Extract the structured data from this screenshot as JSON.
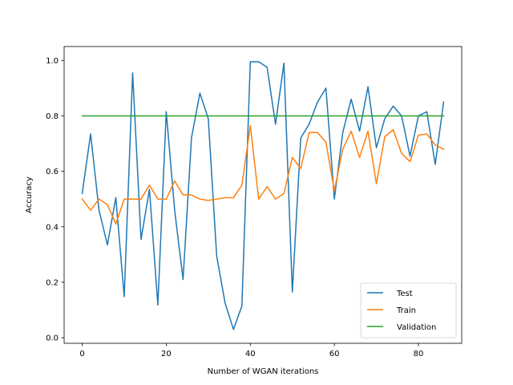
{
  "chart_data": {
    "type": "line",
    "title": "",
    "xlabel": "Number of WGAN iterations",
    "ylabel": "Accuracy",
    "xlim": [
      -4.3,
      90.3
    ],
    "ylim": [
      -0.02,
      1.05
    ],
    "xticks": [
      0,
      20,
      40,
      60,
      80
    ],
    "xtick_labels": [
      "0",
      "20",
      "40",
      "60",
      "80"
    ],
    "yticks": [
      0.0,
      0.2,
      0.4,
      0.6,
      0.8,
      1.0
    ],
    "ytick_labels": [
      "0.0",
      "0.2",
      "0.4",
      "0.6",
      "0.8",
      "1.0"
    ],
    "grid": false,
    "legend_position": "lower-right",
    "x": [
      0,
      2,
      4,
      6,
      8,
      10,
      12,
      14,
      16,
      18,
      20,
      22,
      24,
      26,
      28,
      30,
      32,
      34,
      36,
      38,
      40,
      42,
      44,
      46,
      48,
      50,
      52,
      54,
      56,
      58,
      60,
      62,
      64,
      66,
      68,
      70,
      72,
      74,
      76,
      78,
      80,
      82,
      84,
      86
    ],
    "series": [
      {
        "name": "Test",
        "color": "#1f77b4",
        "values": [
          0.52,
          0.735,
          0.46,
          0.335,
          0.505,
          0.148,
          0.955,
          0.355,
          0.535,
          0.118,
          0.815,
          0.46,
          0.21,
          0.72,
          0.882,
          0.79,
          0.295,
          0.125,
          0.03,
          0.115,
          0.995,
          0.995,
          0.975,
          0.77,
          0.99,
          0.165,
          0.72,
          0.77,
          0.85,
          0.9,
          0.5,
          0.74,
          0.86,
          0.745,
          0.905,
          0.685,
          0.79,
          0.835,
          0.8,
          0.655,
          0.8,
          0.815,
          0.625,
          0.85
        ]
      },
      {
        "name": "Train",
        "color": "#ff7f0e",
        "values": [
          0.5,
          0.46,
          0.5,
          0.48,
          0.41,
          0.5,
          0.5,
          0.5,
          0.55,
          0.5,
          0.5,
          0.565,
          0.515,
          0.515,
          0.5,
          0.495,
          0.5,
          0.505,
          0.505,
          0.55,
          0.765,
          0.5,
          0.545,
          0.5,
          0.52,
          0.65,
          0.61,
          0.74,
          0.74,
          0.705,
          0.53,
          0.68,
          0.745,
          0.65,
          0.745,
          0.555,
          0.725,
          0.75,
          0.665,
          0.635,
          0.73,
          0.735,
          0.695,
          0.68
        ]
      },
      {
        "name": "Validation",
        "color": "#2ca02c",
        "values": [
          0.8,
          0.8,
          0.8,
          0.8,
          0.8,
          0.8,
          0.8,
          0.8,
          0.8,
          0.8,
          0.8,
          0.8,
          0.8,
          0.8,
          0.8,
          0.8,
          0.8,
          0.8,
          0.8,
          0.8,
          0.8,
          0.8,
          0.8,
          0.8,
          0.8,
          0.8,
          0.8,
          0.8,
          0.8,
          0.8,
          0.8,
          0.8,
          0.8,
          0.8,
          0.8,
          0.8,
          0.8,
          0.8,
          0.8,
          0.8,
          0.8,
          0.8,
          0.8,
          0.8
        ]
      }
    ]
  }
}
